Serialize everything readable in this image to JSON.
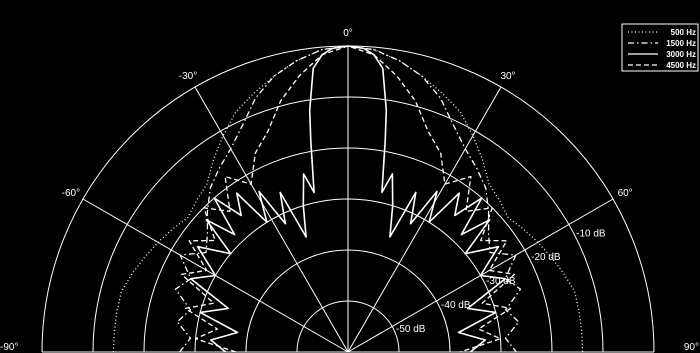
{
  "chart_data": {
    "type": "polar-line",
    "title": "",
    "angle_unit": "degrees",
    "angle_range": [
      -90,
      90
    ],
    "radial_range_db": [
      -60,
      0
    ],
    "angle_ticks": [
      {
        "deg": -90,
        "label": "-90°"
      },
      {
        "deg": -60,
        "label": "-60°"
      },
      {
        "deg": -30,
        "label": "-30°"
      },
      {
        "deg": 0,
        "label": "0°"
      },
      {
        "deg": 30,
        "label": "30°"
      },
      {
        "deg": 60,
        "label": "60°"
      },
      {
        "deg": 90,
        "label": "90°"
      }
    ],
    "ring_labels": [
      {
        "db": -10,
        "label": "-10 dB"
      },
      {
        "db": -20,
        "label": "-20 dB"
      },
      {
        "db": -30,
        "label": "-30 dB"
      },
      {
        "db": -40,
        "label": "-40 dB"
      },
      {
        "db": -50,
        "label": "-50 dB"
      }
    ],
    "rings_db": [
      -10,
      -20,
      -30,
      -40,
      -50
    ],
    "spokes_deg": [
      -90,
      -60,
      -30,
      0,
      30,
      60,
      90
    ],
    "grid": true,
    "legend_position": "top-right",
    "series": [
      {
        "name": "500 Hz",
        "style": "dotted",
        "points": [
          [
            -90,
            -14
          ],
          [
            -85,
            -14
          ],
          [
            -80,
            -14
          ],
          [
            -75,
            -14
          ],
          [
            -70,
            -15
          ],
          [
            -65,
            -16
          ],
          [
            -60,
            -17
          ],
          [
            -55,
            -18
          ],
          [
            -50,
            -19
          ],
          [
            -45,
            -18
          ],
          [
            -40,
            -17
          ],
          [
            -35,
            -14
          ],
          [
            -30,
            -11
          ],
          [
            -25,
            -8
          ],
          [
            -20,
            -6
          ],
          [
            -15,
            -4
          ],
          [
            -10,
            -2
          ],
          [
            -5,
            -0.5
          ],
          [
            0,
            0
          ],
          [
            5,
            -0.5
          ],
          [
            10,
            -2
          ],
          [
            15,
            -4
          ],
          [
            20,
            -6
          ],
          [
            25,
            -8
          ],
          [
            30,
            -11
          ],
          [
            35,
            -14
          ],
          [
            40,
            -17
          ],
          [
            45,
            -18
          ],
          [
            50,
            -19
          ],
          [
            55,
            -18
          ],
          [
            60,
            -17
          ],
          [
            65,
            -16
          ],
          [
            70,
            -15
          ],
          [
            75,
            -14
          ],
          [
            80,
            -14
          ],
          [
            85,
            -14
          ],
          [
            90,
            -14
          ]
        ]
      },
      {
        "name": "1500 Hz",
        "style": "dash-dot",
        "points": [
          [
            -90,
            -27
          ],
          [
            -85,
            -29
          ],
          [
            -80,
            -26
          ],
          [
            -75,
            -28
          ],
          [
            -70,
            -24
          ],
          [
            -65,
            -26
          ],
          [
            -60,
            -22
          ],
          [
            -55,
            -26
          ],
          [
            -50,
            -24
          ],
          [
            -45,
            -21
          ],
          [
            -40,
            -18
          ],
          [
            -35,
            -16
          ],
          [
            -30,
            -14
          ],
          [
            -25,
            -11
          ],
          [
            -20,
            -7
          ],
          [
            -15,
            -4
          ],
          [
            -10,
            -2
          ],
          [
            -5,
            -0.5
          ],
          [
            0,
            0
          ],
          [
            5,
            -0.5
          ],
          [
            10,
            -2
          ],
          [
            15,
            -4
          ],
          [
            20,
            -7
          ],
          [
            25,
            -11
          ],
          [
            30,
            -14
          ],
          [
            35,
            -16
          ],
          [
            40,
            -18
          ],
          [
            45,
            -21
          ],
          [
            50,
            -24
          ],
          [
            55,
            -26
          ],
          [
            60,
            -22
          ],
          [
            65,
            -26
          ],
          [
            70,
            -24
          ],
          [
            75,
            -28
          ],
          [
            80,
            -26
          ],
          [
            85,
            -29
          ],
          [
            90,
            -27
          ]
        ]
      },
      {
        "name": "3000 Hz",
        "style": "solid",
        "points": [
          [
            -90,
            -36
          ],
          [
            -85,
            -33
          ],
          [
            -80,
            -38
          ],
          [
            -75,
            -30
          ],
          [
            -70,
            -35
          ],
          [
            -65,
            -26
          ],
          [
            -60,
            -30
          ],
          [
            -55,
            -24
          ],
          [
            -50,
            -30
          ],
          [
            -47,
            -22
          ],
          [
            -44,
            -28
          ],
          [
            -41,
            -20
          ],
          [
            -38,
            -26
          ],
          [
            -35,
            -22
          ],
          [
            -32,
            -30
          ],
          [
            -29,
            -24
          ],
          [
            -26,
            -32
          ],
          [
            -23,
            -26
          ],
          [
            -20,
            -36
          ],
          [
            -17,
            -30
          ],
          [
            -14,
            -24
          ],
          [
            -12,
            -28
          ],
          [
            -10,
            -18
          ],
          [
            -9,
            -12
          ],
          [
            -7,
            -4
          ],
          [
            -5,
            -1.5
          ],
          [
            -3,
            -0.4
          ],
          [
            0,
            0
          ],
          [
            3,
            -0.4
          ],
          [
            5,
            -1.5
          ],
          [
            7,
            -4
          ],
          [
            9,
            -12
          ],
          [
            10,
            -18
          ],
          [
            12,
            -28
          ],
          [
            14,
            -24
          ],
          [
            17,
            -30
          ],
          [
            20,
            -36
          ],
          [
            23,
            -26
          ],
          [
            26,
            -32
          ],
          [
            29,
            -24
          ],
          [
            32,
            -30
          ],
          [
            35,
            -22
          ],
          [
            38,
            -26
          ],
          [
            41,
            -20
          ],
          [
            44,
            -28
          ],
          [
            47,
            -22
          ],
          [
            50,
            -30
          ],
          [
            55,
            -24
          ],
          [
            60,
            -30
          ],
          [
            65,
            -26
          ],
          [
            70,
            -35
          ],
          [
            75,
            -30
          ],
          [
            80,
            -38
          ],
          [
            85,
            -33
          ],
          [
            90,
            -36
          ]
        ]
      },
      {
        "name": "4500 Hz",
        "style": "dashed",
        "points": [
          [
            -90,
            -38
          ],
          [
            -85,
            -30
          ],
          [
            -80,
            -34
          ],
          [
            -75,
            -27
          ],
          [
            -70,
            -32
          ],
          [
            -65,
            -24
          ],
          [
            -60,
            -28
          ],
          [
            -55,
            -22
          ],
          [
            -50,
            -26
          ],
          [
            -45,
            -20
          ],
          [
            -40,
            -24
          ],
          [
            -35,
            -18
          ],
          [
            -30,
            -22
          ],
          [
            -25,
            -17
          ],
          [
            -20,
            -14
          ],
          [
            -15,
            -9
          ],
          [
            -10,
            -5
          ],
          [
            -5,
            -1.5
          ],
          [
            0,
            0
          ],
          [
            5,
            -1.5
          ],
          [
            10,
            -5
          ],
          [
            15,
            -9
          ],
          [
            20,
            -14
          ],
          [
            25,
            -17
          ],
          [
            30,
            -22
          ],
          [
            35,
            -18
          ],
          [
            40,
            -24
          ],
          [
            45,
            -20
          ],
          [
            50,
            -26
          ],
          [
            55,
            -22
          ],
          [
            60,
            -28
          ],
          [
            65,
            -24
          ],
          [
            70,
            -32
          ],
          [
            75,
            -27
          ],
          [
            80,
            -34
          ],
          [
            85,
            -30
          ],
          [
            90,
            -38
          ]
        ]
      }
    ]
  }
}
